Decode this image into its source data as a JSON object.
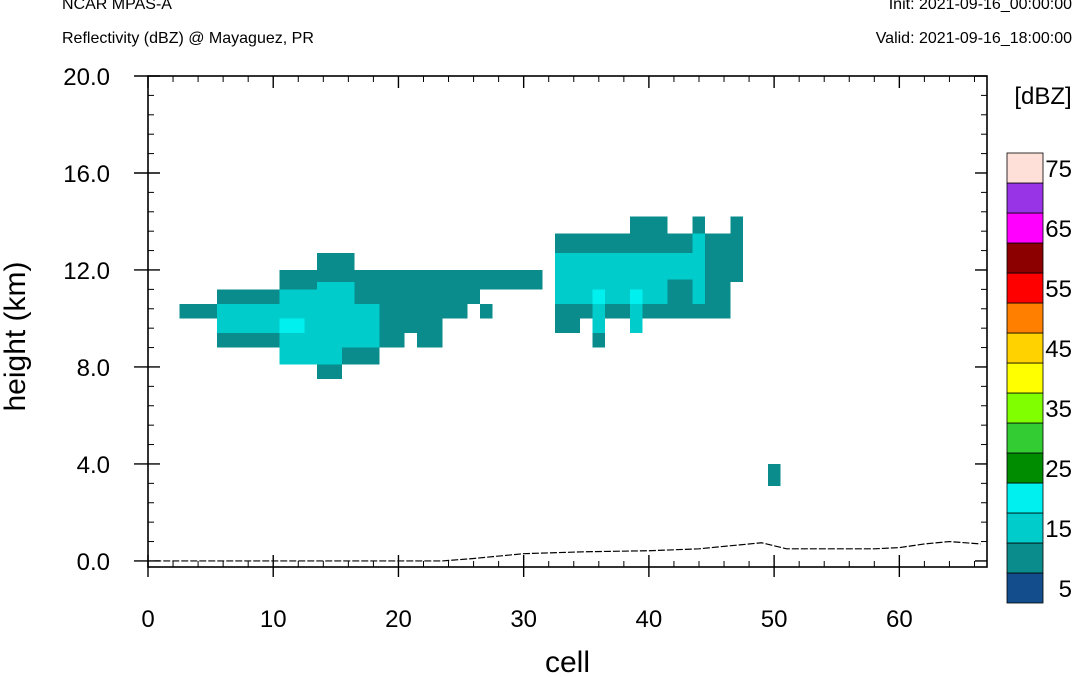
{
  "header": {
    "model": "NCAR MPAS-A",
    "product": "Reflectivity (dBZ) @ Mayaguez, PR",
    "init": "Init: 2021-09-16_00:00:00",
    "valid": "Valid: 2021-09-16_18:00:00"
  },
  "chart_data": {
    "type": "heatmap",
    "title": "Reflectivity (dBZ) @ Mayaguez, PR",
    "xlabel": "cell",
    "ylabel": "height (km)",
    "xlim": [
      0,
      67
    ],
    "ylim": [
      -0.25,
      20.0
    ],
    "x_ticks": [
      0,
      10,
      20,
      30,
      40,
      50,
      60
    ],
    "x_ticklabels": [
      "0",
      "10",
      "20",
      "30",
      "40",
      "50",
      "60"
    ],
    "y_ticks": [
      0,
      4,
      8,
      12,
      16,
      20
    ],
    "y_ticklabels": [
      "0.0",
      "4.0",
      "8.0",
      "12.0",
      "16.0",
      "20.0"
    ],
    "colorbar": {
      "title": "[dBZ]",
      "levels": [
        0,
        5,
        10,
        15,
        20,
        25,
        30,
        35,
        40,
        45,
        50,
        55,
        60,
        65,
        70,
        75
      ],
      "labels": [
        "5",
        "15",
        "25",
        "35",
        "45",
        "55",
        "65",
        "75"
      ],
      "colors": [
        "#134d8c",
        "#0a8c8c",
        "#00cccc",
        "#00f0f0",
        "#008c00",
        "#33cc33",
        "#80ff00",
        "#ffff00",
        "#ffd200",
        "#ff8000",
        "#ff0000",
        "#8c0000",
        "#ff00ff",
        "#9933e6",
        "#ffe0d8"
      ]
    },
    "cells": [
      {
        "x0": 2.5,
        "x1": 5.5,
        "y0": 10.0,
        "y1": 10.6,
        "dbz": 5
      },
      {
        "x0": 5.5,
        "x1": 10.5,
        "y0": 11.2,
        "y1": 10.6,
        "dbz": 5
      },
      {
        "x0": 5.5,
        "x1": 10.5,
        "y0": 8.8,
        "y1": 9.4,
        "dbz": 5
      },
      {
        "x0": 10.5,
        "x1": 31.5,
        "y0": 11.2,
        "y1": 12.0,
        "dbz": 5
      },
      {
        "x0": 13.5,
        "x1": 16.5,
        "y0": 12.0,
        "y1": 12.7,
        "dbz": 5
      },
      {
        "x0": 16.5,
        "x1": 26.5,
        "y0": 11.2,
        "y1": 10.6,
        "dbz": 5
      },
      {
        "x0": 16.5,
        "x1": 25.5,
        "y0": 10.0,
        "y1": 10.6,
        "dbz": 5
      },
      {
        "x0": 18.5,
        "x1": 23.5,
        "y0": 9.4,
        "y1": 10.0,
        "dbz": 5
      },
      {
        "x0": 18.5,
        "x1": 20.5,
        "y0": 8.8,
        "y1": 9.4,
        "dbz": 5
      },
      {
        "x0": 21.5,
        "x1": 23.5,
        "y0": 8.8,
        "y1": 9.4,
        "dbz": 5
      },
      {
        "x0": 15.5,
        "x1": 18.5,
        "y0": 8.1,
        "y1": 8.8,
        "dbz": 5
      },
      {
        "x0": 13.5,
        "x1": 15.5,
        "y0": 7.5,
        "y1": 8.1,
        "dbz": 5
      },
      {
        "x0": 26.5,
        "x1": 27.5,
        "y0": 10.0,
        "y1": 10.6,
        "dbz": 5
      },
      {
        "x0": 26.5,
        "x1": 31.5,
        "y0": 11.2,
        "y1": 11.6,
        "dbz": 5
      },
      {
        "x0": 5.5,
        "x1": 18.5,
        "y0": 9.4,
        "y1": 10.6,
        "dbz": 10
      },
      {
        "x0": 10.5,
        "x1": 18.5,
        "y0": 8.8,
        "y1": 9.4,
        "dbz": 10
      },
      {
        "x0": 10.5,
        "x1": 15.5,
        "y0": 8.1,
        "y1": 8.8,
        "dbz": 10
      },
      {
        "x0": 10.5,
        "x1": 16.5,
        "y0": 10.6,
        "y1": 11.2,
        "dbz": 10
      },
      {
        "x0": 13.5,
        "x1": 16.5,
        "y0": 11.2,
        "y1": 11.5,
        "dbz": 10
      },
      {
        "x0": 10.5,
        "x1": 12.5,
        "y0": 9.4,
        "y1": 10.0,
        "dbz": 15
      },
      {
        "x0": 32.5,
        "x1": 44.5,
        "y0": 12.7,
        "y1": 13.5,
        "dbz": 5
      },
      {
        "x0": 38.5,
        "x1": 41.5,
        "y0": 13.5,
        "y1": 14.2,
        "dbz": 5
      },
      {
        "x0": 44.5,
        "x1": 47.5,
        "y0": 11.5,
        "y1": 13.5,
        "dbz": 5
      },
      {
        "x0": 43.5,
        "x1": 44.5,
        "y0": 13.5,
        "y1": 14.2,
        "dbz": 5
      },
      {
        "x0": 46.5,
        "x1": 47.5,
        "y0": 13.5,
        "y1": 14.2,
        "dbz": 5
      },
      {
        "x0": 32.5,
        "x1": 46.5,
        "y0": 10.0,
        "y1": 11.6,
        "dbz": 5
      },
      {
        "x0": 32.5,
        "x1": 34.5,
        "y0": 9.4,
        "y1": 10.0,
        "dbz": 5
      },
      {
        "x0": 41.5,
        "x1": 43.5,
        "y0": 11.2,
        "y1": 11.5,
        "dbz": 5
      },
      {
        "x0": 43.5,
        "x1": 44.5,
        "y0": 10.0,
        "y1": 10.6,
        "dbz": 5
      },
      {
        "x0": 35.5,
        "x1": 36.5,
        "y0": 8.8,
        "y1": 9.4,
        "dbz": 5
      },
      {
        "x0": 32.5,
        "x1": 44.5,
        "y0": 11.6,
        "y1": 12.7,
        "dbz": 10
      },
      {
        "x0": 32.5,
        "x1": 34.5,
        "y0": 10.6,
        "y1": 11.6,
        "dbz": 10
      },
      {
        "x0": 34.5,
        "x1": 41.5,
        "y0": 10.6,
        "y1": 11.6,
        "dbz": 10
      },
      {
        "x0": 43.5,
        "x1": 44.5,
        "y0": 10.6,
        "y1": 13.5,
        "dbz": 10
      },
      {
        "x0": 35.5,
        "x1": 36.5,
        "y0": 9.4,
        "y1": 10.6,
        "dbz": 10
      },
      {
        "x0": 38.5,
        "x1": 39.5,
        "y0": 9.4,
        "y1": 10.6,
        "dbz": 10
      },
      {
        "x0": 35.5,
        "x1": 36.5,
        "y0": 10.6,
        "y1": 11.2,
        "dbz": 15
      },
      {
        "x0": 38.5,
        "x1": 39.5,
        "y0": 10.6,
        "y1": 11.2,
        "dbz": 15
      },
      {
        "x0": 49.5,
        "x1": 50.5,
        "y0": 3.1,
        "y1": 4.0,
        "dbz": 5
      }
    ],
    "terrain": {
      "x": [
        0.5,
        23.5,
        26,
        30,
        35,
        40,
        44,
        47,
        49,
        51,
        55,
        58,
        60,
        62,
        64,
        66.5
      ],
      "height_km": [
        0.0,
        0.0,
        0.1,
        0.3,
        0.38,
        0.42,
        0.5,
        0.65,
        0.75,
        0.5,
        0.5,
        0.5,
        0.55,
        0.7,
        0.8,
        0.7
      ]
    }
  }
}
